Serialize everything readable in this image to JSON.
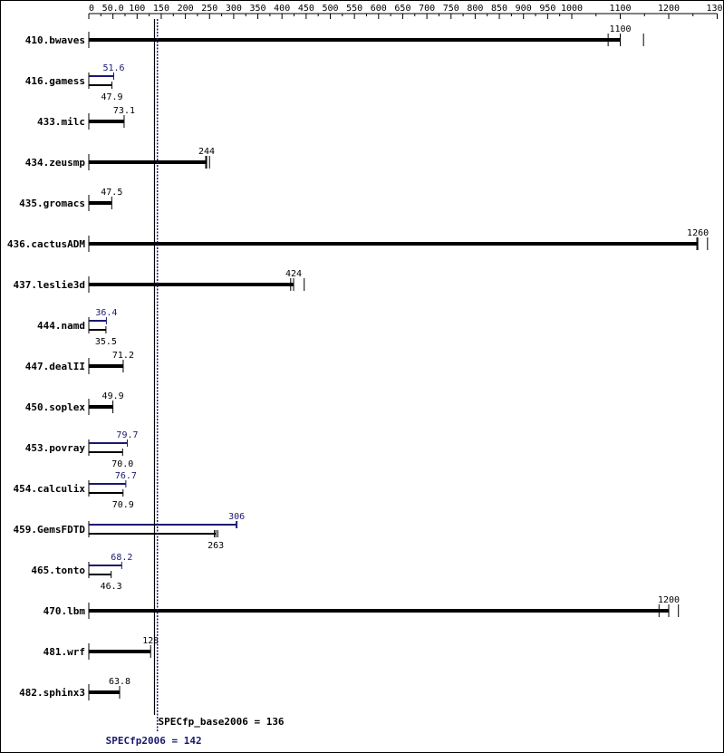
{
  "chart_data": {
    "type": "bar",
    "orientation": "horizontal",
    "x_ticks": [
      0,
      50.0,
      100,
      150,
      200,
      250,
      300,
      350,
      400,
      450,
      500,
      550,
      600,
      650,
      700,
      750,
      800,
      850,
      900,
      950,
      1000,
      1100,
      1200,
      1300
    ],
    "x_tick_labels": [
      "0",
      "50.0",
      "100",
      "150",
      "200",
      "250",
      "300",
      "350",
      "400",
      "450",
      "500",
      "550",
      "600",
      "650",
      "700",
      "750",
      "800",
      "850",
      "900",
      "950",
      "1000",
      "1100",
      "1200",
      "1300"
    ],
    "xlim": [
      0,
      1300
    ],
    "x_scale": "piecewise-linear (0–1000 compressed at 50 per division, 1000–1300 at 100 per division)",
    "grid": false,
    "colors": {
      "base": "#000000",
      "peak": "#191970"
    },
    "categories": [
      "410.bwaves",
      "416.gamess",
      "433.milc",
      "434.zeusmp",
      "435.gromacs",
      "436.cactusADM",
      "437.leslie3d",
      "444.namd",
      "447.dealII",
      "450.soplex",
      "453.povray",
      "454.calculix",
      "459.GemsFDTD",
      "465.tonto",
      "470.lbm",
      "481.wrf",
      "482.sphinx3"
    ],
    "benchmarks": [
      {
        "name": "410.bwaves",
        "base": 1100,
        "base_label": "1100",
        "base_runs": [
          1075,
          1100,
          1148
        ],
        "peak": null,
        "peak_label": ""
      },
      {
        "name": "416.gamess",
        "base": 47.9,
        "base_label": "47.9",
        "base_runs": [
          47.9
        ],
        "peak": 51.6,
        "peak_label": "51.6",
        "peak_runs": [
          51.6
        ]
      },
      {
        "name": "433.milc",
        "base": 73.1,
        "base_label": "73.1",
        "base_runs": [
          73.1
        ],
        "peak": null,
        "peak_label": ""
      },
      {
        "name": "434.zeusmp",
        "base": 244,
        "base_label": "244",
        "base_runs": [
          242,
          244,
          250
        ],
        "peak": null,
        "peak_label": ""
      },
      {
        "name": "435.gromacs",
        "base": 47.5,
        "base_label": "47.5",
        "base_runs": [
          47.5
        ],
        "peak": null,
        "peak_label": ""
      },
      {
        "name": "436.cactusADM",
        "base": 1260,
        "base_label": "1260",
        "base_runs": [
          1258,
          1260,
          1280
        ],
        "peak": null,
        "peak_label": ""
      },
      {
        "name": "437.leslie3d",
        "base": 424,
        "base_label": "424",
        "base_runs": [
          418,
          424,
          446
        ],
        "peak": null,
        "peak_label": ""
      },
      {
        "name": "444.namd",
        "base": 35.5,
        "base_label": "35.5",
        "base_runs": [
          35.5
        ],
        "peak": 36.4,
        "peak_label": "36.4",
        "peak_runs": [
          36.4
        ]
      },
      {
        "name": "447.dealII",
        "base": 71.2,
        "base_label": "71.2",
        "base_runs": [
          71.2
        ],
        "peak": null,
        "peak_label": ""
      },
      {
        "name": "450.soplex",
        "base": 49.9,
        "base_label": "49.9",
        "base_runs": [
          49.9
        ],
        "peak": null,
        "peak_label": ""
      },
      {
        "name": "453.povray",
        "base": 70.0,
        "base_label": "70.0",
        "base_runs": [
          70.0
        ],
        "peak": 79.7,
        "peak_label": "79.7",
        "peak_runs": [
          79.7
        ]
      },
      {
        "name": "454.calculix",
        "base": 70.9,
        "base_label": "70.9",
        "base_runs": [
          70.9
        ],
        "peak": 76.7,
        "peak_label": "76.7",
        "peak_runs": [
          76.7
        ]
      },
      {
        "name": "459.GemsFDTD",
        "base": 263,
        "base_label": "263",
        "base_runs": [
          260,
          263,
          267
        ],
        "peak": 306,
        "peak_label": "306",
        "peak_runs": [
          305,
          307
        ]
      },
      {
        "name": "465.tonto",
        "base": 46.3,
        "base_label": "46.3",
        "base_runs": [
          46.3
        ],
        "peak": 68.2,
        "peak_label": "68.2",
        "peak_runs": [
          68.2
        ]
      },
      {
        "name": "470.lbm",
        "base": 1200,
        "base_label": "1200",
        "base_runs": [
          1180,
          1200,
          1220
        ],
        "peak": null,
        "peak_label": ""
      },
      {
        "name": "481.wrf",
        "base": 128,
        "base_label": "128",
        "base_runs": [
          128
        ],
        "peak": null,
        "peak_label": ""
      },
      {
        "name": "482.sphinx3",
        "base": 63.8,
        "base_label": "63.8",
        "base_runs": [
          63.8
        ],
        "peak": null,
        "peak_label": ""
      }
    ],
    "summary": {
      "base_label": "SPECfp_base2006 = 136",
      "base_value": 136,
      "peak_label": "SPECfp2006 = 142",
      "peak_value": 142
    }
  }
}
